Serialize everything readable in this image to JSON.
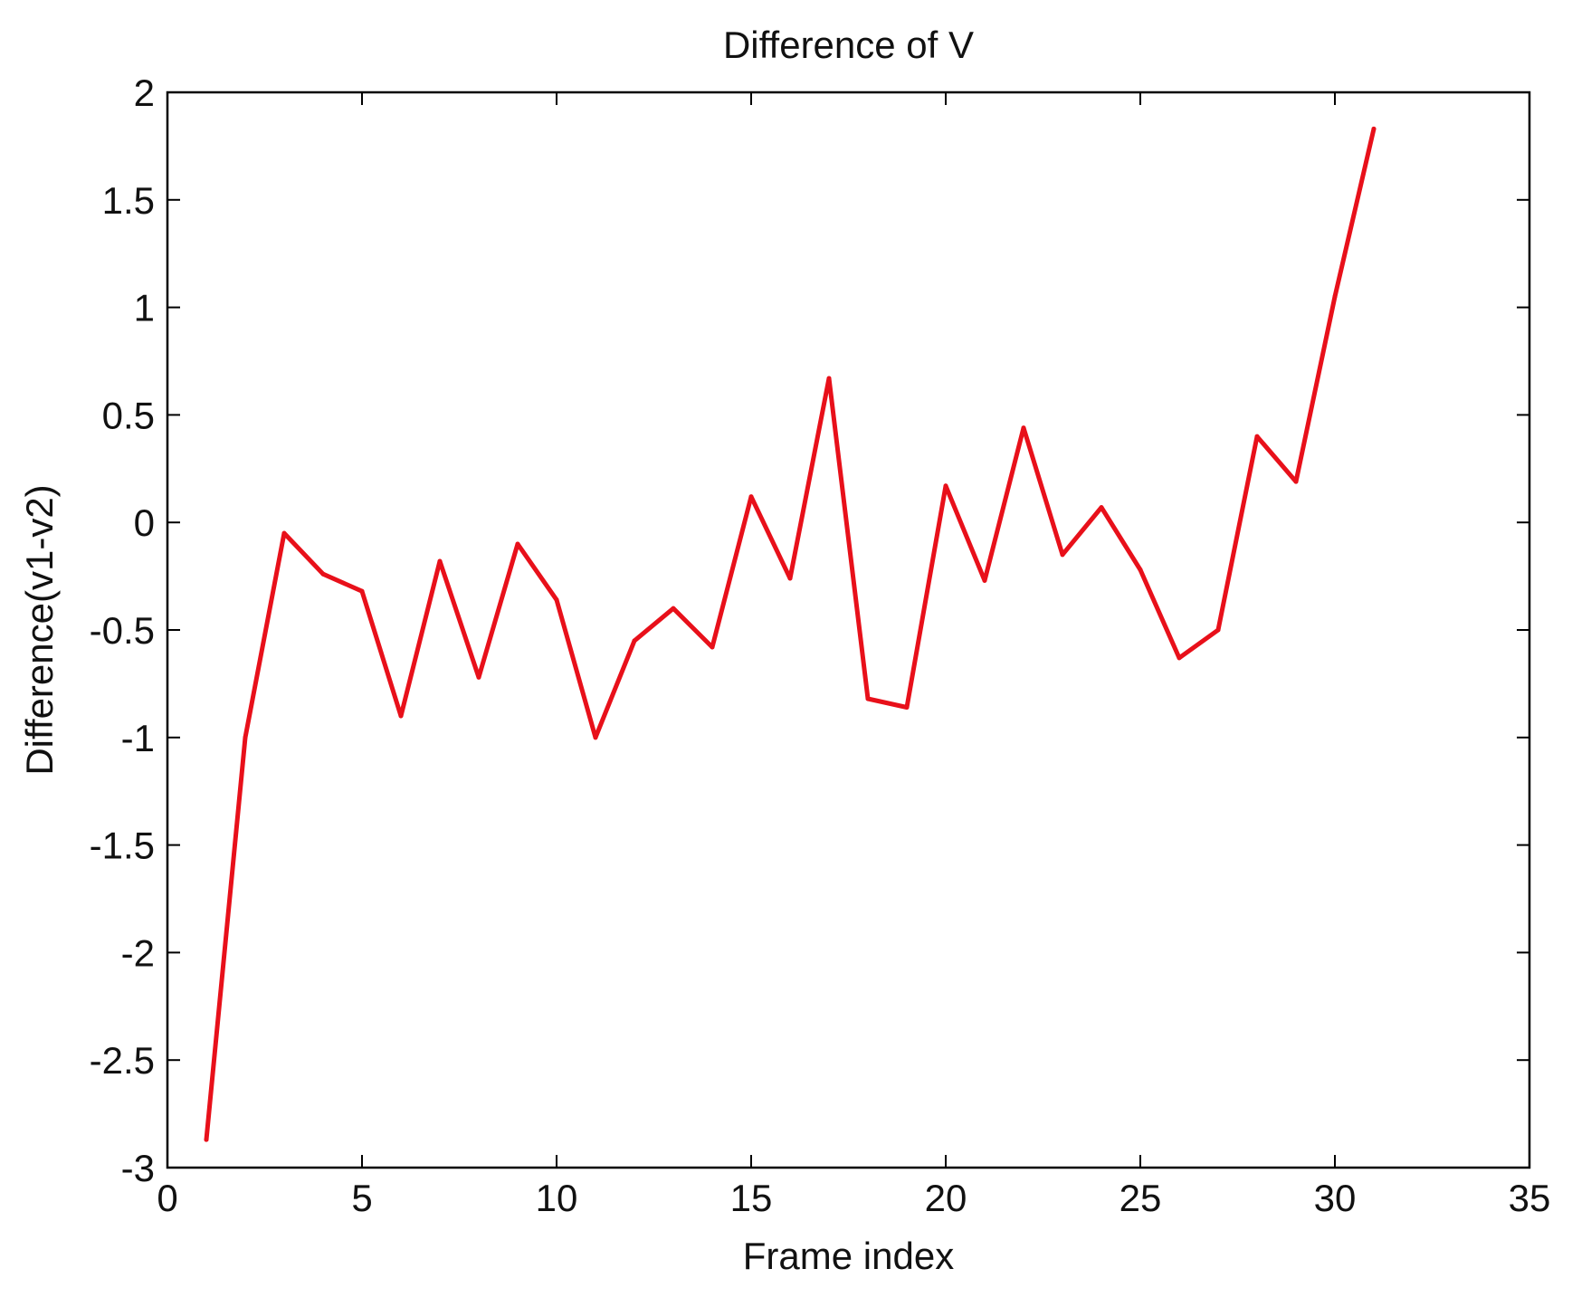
{
  "chart_data": {
    "type": "line",
    "title": "Difference of V",
    "xlabel": "Frame index",
    "ylabel": "Difference(v1-v2)",
    "xlim": [
      0,
      35
    ],
    "ylim": [
      -3,
      2
    ],
    "xticks": [
      0,
      5,
      10,
      15,
      20,
      25,
      30,
      35
    ],
    "yticks": [
      -3,
      -2.5,
      -2,
      -1.5,
      -1,
      -0.5,
      0,
      0.5,
      1,
      1.5,
      2
    ],
    "xtick_labels": [
      "0",
      "5",
      "10",
      "15",
      "20",
      "25",
      "30",
      "35"
    ],
    "ytick_labels": [
      "-3",
      "-2.5",
      "-2",
      "-1.5",
      "-1",
      "-0.5",
      "0",
      "0.5",
      "1",
      "1.5",
      "2"
    ],
    "grid": false,
    "series": [
      {
        "color": "#e8101a",
        "x": [
          1,
          2,
          3,
          4,
          5,
          6,
          7,
          8,
          9,
          10,
          11,
          12,
          13,
          14,
          15,
          16,
          17,
          18,
          19,
          20,
          21,
          22,
          23,
          24,
          25,
          26,
          27,
          28,
          29,
          30,
          31
        ],
        "y": [
          -2.87,
          -1.0,
          -0.05,
          -0.24,
          -0.32,
          -0.9,
          -0.18,
          -0.72,
          -0.1,
          -0.36,
          -1.0,
          -0.55,
          -0.4,
          -0.58,
          0.12,
          -0.26,
          0.67,
          -0.82,
          -0.86,
          0.17,
          -0.27,
          0.44,
          -0.15,
          0.07,
          -0.22,
          -0.63,
          -0.5,
          0.4,
          0.19,
          1.05,
          1.83
        ]
      }
    ]
  }
}
